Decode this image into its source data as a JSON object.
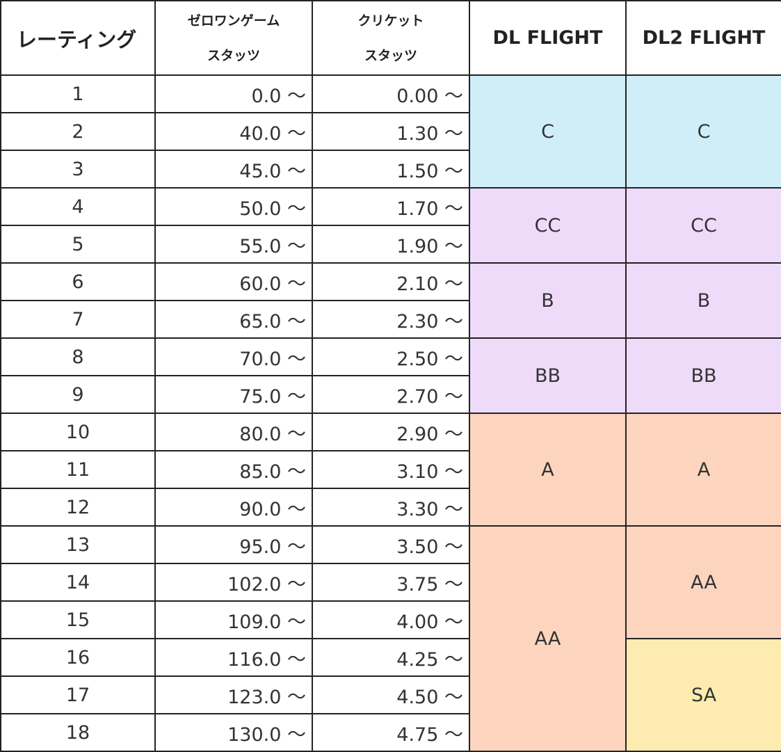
{
  "header": {
    "rating": "レーティング",
    "zero_one": [
      "ゼロワンゲーム",
      "スタッツ"
    ],
    "cricket": [
      "クリケット",
      "スタッツ"
    ],
    "dl": "DL FLIGHT",
    "dl2": "DL2 FLIGHT"
  },
  "rows": [
    [
      "1",
      "0.0 〜",
      "0.00 〜"
    ],
    [
      "2",
      "40.0 〜",
      "1.30 〜"
    ],
    [
      "3",
      "45.0 〜",
      "1.50 〜"
    ],
    [
      "4",
      "50.0 〜",
      "1.70 〜"
    ],
    [
      "5",
      "55.0 〜",
      "1.90 〜"
    ],
    [
      "6",
      "60.0 〜",
      "2.10 〜"
    ],
    [
      "7",
      "65.0 〜",
      "2.30 〜"
    ],
    [
      "8",
      "70.0 〜",
      "2.50 〜"
    ],
    [
      "9",
      "75.0 〜",
      "2.70 〜"
    ],
    [
      "10",
      "80.0 〜",
      "2.90 〜"
    ],
    [
      "11",
      "85.0 〜",
      "3.10 〜"
    ],
    [
      "12",
      "90.0 〜",
      "3.30 〜"
    ],
    [
      "13",
      "95.0 〜",
      "3.50 〜"
    ],
    [
      "14",
      "102.0 〜",
      "3.75 〜"
    ],
    [
      "15",
      "109.0 〜",
      "4.00 〜"
    ],
    [
      "16",
      "116.0 〜",
      "4.25 〜"
    ],
    [
      "17",
      "123.0 〜",
      "4.50 〜"
    ],
    [
      "18",
      "130.0 〜",
      "4.75 〜"
    ]
  ],
  "dl_flight": [
    "C",
    "CC",
    "B",
    "BB",
    "A",
    "AA"
  ],
  "dl2_flight": [
    "C",
    "CC",
    "B",
    "BB",
    "A",
    "AA",
    "SA"
  ]
}
